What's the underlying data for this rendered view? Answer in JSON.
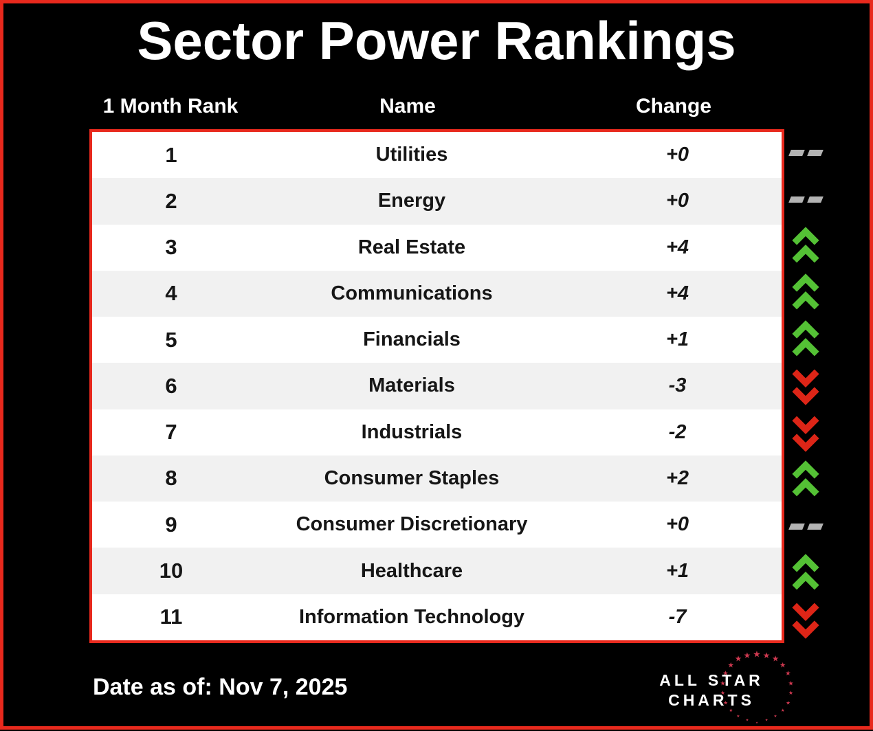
{
  "chart_data": {
    "type": "table",
    "title": "Sector Power Rankings",
    "columns": [
      "1 Month Rank",
      "Name",
      "Change"
    ],
    "rows": [
      {
        "rank": "1",
        "name": "Utilities",
        "change": "+0",
        "direction": "flat"
      },
      {
        "rank": "2",
        "name": "Energy",
        "change": "+0",
        "direction": "flat"
      },
      {
        "rank": "3",
        "name": "Real Estate",
        "change": "+4",
        "direction": "up"
      },
      {
        "rank": "4",
        "name": "Communications",
        "change": "+4",
        "direction": "up"
      },
      {
        "rank": "5",
        "name": "Financials",
        "change": "+1",
        "direction": "up"
      },
      {
        "rank": "6",
        "name": "Materials",
        "change": "-3",
        "direction": "down"
      },
      {
        "rank": "7",
        "name": "Industrials",
        "change": "-2",
        "direction": "down"
      },
      {
        "rank": "8",
        "name": "Consumer Staples",
        "change": "+2",
        "direction": "up"
      },
      {
        "rank": "9",
        "name": "Consumer Discretionary",
        "change": "+0",
        "direction": "flat"
      },
      {
        "rank": "10",
        "name": "Healthcare",
        "change": "+1",
        "direction": "up"
      },
      {
        "rank": "11",
        "name": "Information Technology",
        "change": "-7",
        "direction": "down"
      }
    ],
    "footnote": "Date as of: Nov 7, 2025"
  },
  "icons": {
    "up": "double-chevron-up-icon",
    "down": "double-chevron-down-icon",
    "flat": "double-dash-icon"
  },
  "logo": {
    "line1": "ALL STAR",
    "line2": "CHARTS"
  },
  "colors": {
    "border_red": "#e8291d",
    "up_green": "#54c135",
    "down_red": "#dd2517",
    "flat_gray": "#b3b3b3",
    "star_red": "#cf3950",
    "row_alt": "#f1f1f1",
    "text_dark": "#161616",
    "background": "#000000"
  }
}
